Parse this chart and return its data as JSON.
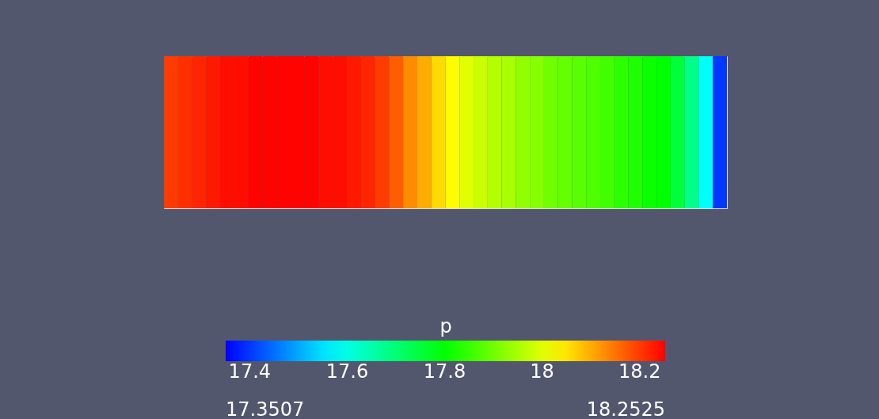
{
  "chart_data": {
    "type": "heatmap",
    "categories": [
      null,
      null,
      null,
      null,
      null,
      null,
      null,
      null,
      null,
      null,
      null,
      null,
      null,
      null,
      null,
      null,
      null,
      null,
      null,
      null,
      null,
      null,
      null,
      null,
      null,
      null,
      null,
      null,
      null,
      null,
      null,
      null,
      null,
      null,
      null,
      null,
      null,
      null,
      null,
      null
    ],
    "y_categories": [
      null
    ],
    "cells": [
      [
        18.2,
        18.21,
        18.22,
        18.23,
        18.24,
        18.24,
        18.25,
        18.25,
        18.25,
        18.25,
        18.25,
        18.24,
        18.24,
        18.23,
        18.22,
        18.2,
        18.17,
        18.13,
        18.1,
        18.06,
        18.03,
        18.0,
        17.98,
        17.96,
        17.95,
        17.93,
        17.92,
        17.9,
        17.89,
        17.88,
        17.87,
        17.86,
        17.84,
        17.83,
        17.81,
        17.8,
        17.75,
        17.68,
        17.58,
        17.4
      ]
    ],
    "clabel": "p",
    "clim": [
      17.3507,
      18.2525
    ],
    "cticks": [
      17.4,
      17.6,
      17.8,
      18,
      18.2
    ],
    "annotations": [
      "17.3507",
      "18.2525"
    ],
    "tick_labels": false
  }
}
